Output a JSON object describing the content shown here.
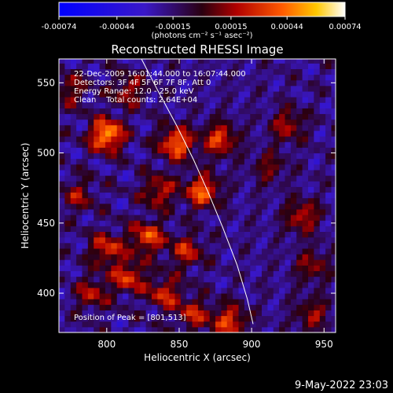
{
  "chart_data": {
    "type": "heatmap",
    "title": "Reconstructed RHESSI Image",
    "xlabel": "Heliocentric X (arcsec)",
    "ylabel": "Heliocentric Y (arcsec)",
    "xlim": [
      767,
      958
    ],
    "ylim": [
      372,
      567
    ],
    "x_ticks": [
      800,
      850,
      900,
      950
    ],
    "y_ticks": [
      400,
      450,
      500,
      550
    ],
    "grid": false,
    "colorbar": {
      "position": "top",
      "range": [
        -0.00074,
        0.00074
      ],
      "tick_values": [
        -0.00074,
        -0.00044,
        -0.00015,
        0.00015,
        0.00044,
        0.00074
      ],
      "tick_labels": [
        "-0.00074",
        "-0.00044",
        "-0.00015",
        "0.00015",
        "0.00044",
        "0.00074"
      ],
      "unit_label": "(photons cm⁻² s⁻¹ asec⁻²)"
    },
    "annotations": [
      "22-Dec-2009 16:01:44.000 to 16:07:44.000",
      "Detectors: 3F 4F 5F 6F 7F 8F, Att 0",
      "Energy Range: 12.0 - 25.0 keV",
      "Clean    Total counts: 2.64E+04"
    ],
    "peak_label": "Position of Peak = [801,513]",
    "peak": [
      801,
      513
    ],
    "bright_spots": [
      {
        "x": 800,
        "y": 513,
        "value": 0.00074
      },
      {
        "x": 848,
        "y": 507,
        "value": 0.00062
      },
      {
        "x": 866,
        "y": 473,
        "value": 0.00058
      },
      {
        "x": 878,
        "y": 510,
        "value": 0.0005
      },
      {
        "x": 925,
        "y": 520,
        "value": 0.00035
      },
      {
        "x": 836,
        "y": 473,
        "value": 0.0004
      },
      {
        "x": 828,
        "y": 440,
        "value": 0.00052
      },
      {
        "x": 800,
        "y": 432,
        "value": 0.00045
      },
      {
        "x": 855,
        "y": 430,
        "value": 0.0004
      },
      {
        "x": 815,
        "y": 412,
        "value": 0.00047
      },
      {
        "x": 840,
        "y": 400,
        "value": 0.00042
      },
      {
        "x": 790,
        "y": 400,
        "value": 0.00035
      },
      {
        "x": 885,
        "y": 380,
        "value": 0.0005
      },
      {
        "x": 935,
        "y": 455,
        "value": 0.0004
      },
      {
        "x": 942,
        "y": 420,
        "value": 0.0003
      },
      {
        "x": 912,
        "y": 490,
        "value": 0.00025
      },
      {
        "x": 780,
        "y": 470,
        "value": 0.0003
      },
      {
        "x": 775,
        "y": 545,
        "value": 0.0003
      },
      {
        "x": 815,
        "y": 545,
        "value": 0.00035
      },
      {
        "x": 942,
        "y": 385,
        "value": 0.00032
      },
      {
        "x": 860,
        "y": 385,
        "value": 0.00038
      }
    ],
    "limb_curve": {
      "x": [
        824,
        835,
        848,
        860,
        870,
        880,
        890,
        897,
        901
      ],
      "y": [
        567,
        545,
        520,
        495,
        472,
        447,
        420,
        396,
        378
      ]
    }
  },
  "footer": {
    "timestamp": "9-May-2022 23:03"
  }
}
